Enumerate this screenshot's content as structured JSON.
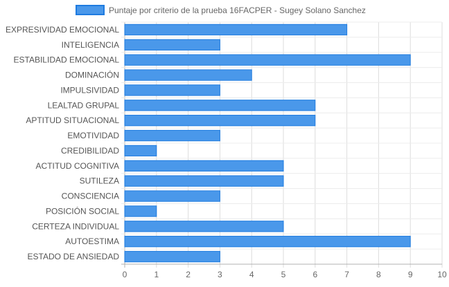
{
  "chart_data": {
    "type": "bar",
    "orientation": "horizontal",
    "categories": [
      "EXPRESIVIDAD EMOCIONAL",
      "INTELIGENCIA",
      "ESTABILIDAD EMOCIONAL",
      "DOMINACIÓN",
      "IMPULSIVIDAD",
      "LEALTAD GRUPAL",
      "APTITUD SITUACIONAL",
      "EMOTIVIDAD",
      "CREDIBILIDAD",
      "ACTITUD COGNITIVA",
      "SUTILEZA",
      "CONSCIENCIA",
      "POSICIÓN SOCIAL",
      "CERTEZA INDIVIDUAL",
      "AUTOESTIMA",
      "ESTADO DE ANSIEDAD"
    ],
    "series": [
      {
        "name": "Puntaje por criterio de la prueba 16FACPER - Sugey Solano Sanchez",
        "values": [
          7,
          3,
          9,
          4,
          3,
          6,
          6,
          3,
          1,
          5,
          5,
          3,
          1,
          5,
          9,
          3
        ],
        "color": "#4a98ea",
        "border_color": "#1e7be0"
      }
    ],
    "x_ticks": [
      "0",
      "1",
      "2",
      "3",
      "4",
      "5",
      "6",
      "7",
      "8",
      "9",
      "10"
    ],
    "xlim": [
      0,
      10
    ],
    "grid": true,
    "legend_position": "top"
  }
}
